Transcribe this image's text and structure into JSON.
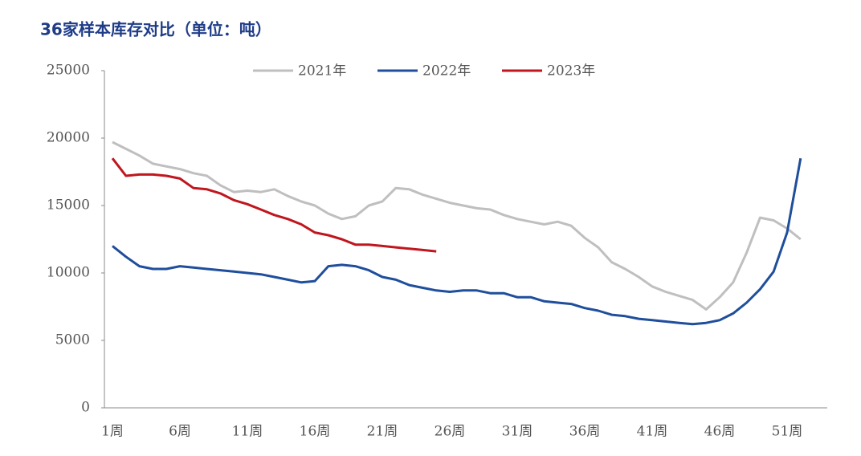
{
  "chart_data": {
    "type": "line",
    "title": "36家样本库存对比（单位：吨）",
    "categories": [
      "1周",
      null,
      null,
      null,
      null,
      "6周",
      null,
      null,
      null,
      null,
      "11周",
      null,
      null,
      null,
      null,
      "16周",
      null,
      null,
      null,
      null,
      "21周",
      null,
      null,
      null,
      null,
      "26周",
      null,
      null,
      null,
      null,
      "31周",
      null,
      null,
      null,
      null,
      "36周",
      null,
      null,
      null,
      null,
      "41周",
      null,
      null,
      null,
      null,
      "46周",
      null,
      null,
      null,
      null,
      "51周",
      null
    ],
    "ylim": [
      0,
      25000
    ],
    "yticks": [
      0,
      5000,
      10000,
      15000,
      20000,
      25000
    ],
    "legend": "top",
    "series": [
      {
        "name": "2021年",
        "color": "#bfbfbf",
        "values": [
          19700,
          19200,
          18700,
          18100,
          17900,
          17700,
          17400,
          17200,
          16500,
          16000,
          16100,
          16000,
          16200,
          15700,
          15300,
          15000,
          14400,
          14000,
          14200,
          15000,
          15300,
          16300,
          16200,
          15800,
          15500,
          15200,
          15000,
          14800,
          14700,
          14300,
          14000,
          13800,
          13600,
          13800,
          13500,
          12600,
          11900,
          10800,
          10300,
          9700,
          9000,
          8600,
          8300,
          8000,
          7300,
          8200,
          9300,
          11500,
          14100,
          13900,
          13300,
          12500
        ]
      },
      {
        "name": "2022年",
        "color": "#1f4e9c",
        "values": [
          12000,
          11200,
          10500,
          10300,
          10300,
          10500,
          10400,
          10300,
          10200,
          10100,
          10000,
          9900,
          9700,
          9500,
          9300,
          9400,
          10500,
          10600,
          10500,
          10200,
          9700,
          9500,
          9100,
          8900,
          8700,
          8600,
          8700,
          8700,
          8500,
          8500,
          8200,
          8200,
          7900,
          7800,
          7700,
          7400,
          7200,
          6900,
          6800,
          6600,
          6500,
          6400,
          6300,
          6200,
          6300,
          6500,
          7000,
          7800,
          8800,
          10100,
          13000,
          18500
        ]
      },
      {
        "name": "2023年",
        "color": "#c0161e",
        "values": [
          18500,
          17200,
          17300,
          17300,
          17200,
          17000,
          16300,
          16200,
          15900,
          15400,
          15100,
          14700,
          14300,
          14000,
          13600,
          13000,
          12800,
          12500,
          12100,
          12100,
          12000,
          11900,
          11800,
          11700,
          11600,
          null,
          null,
          null,
          null,
          null,
          null,
          null,
          null,
          null,
          null,
          null,
          null,
          null,
          null,
          null,
          null,
          null,
          null,
          null,
          null,
          null,
          null,
          null,
          null,
          null,
          null,
          null
        ]
      }
    ]
  }
}
